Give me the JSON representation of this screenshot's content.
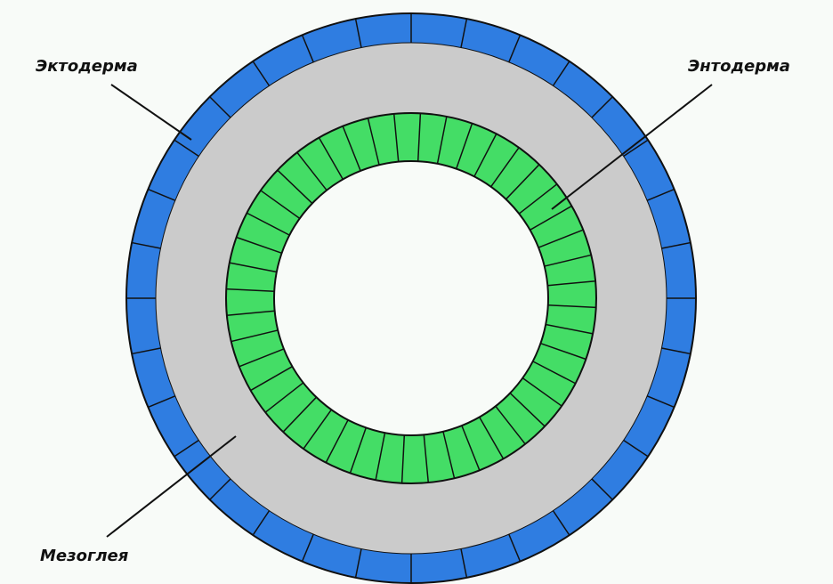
{
  "labels": {
    "ectoderm": "Эктодерма",
    "endoderm": "Энтодерма",
    "mesoglea": "Мезоглея"
  }
}
